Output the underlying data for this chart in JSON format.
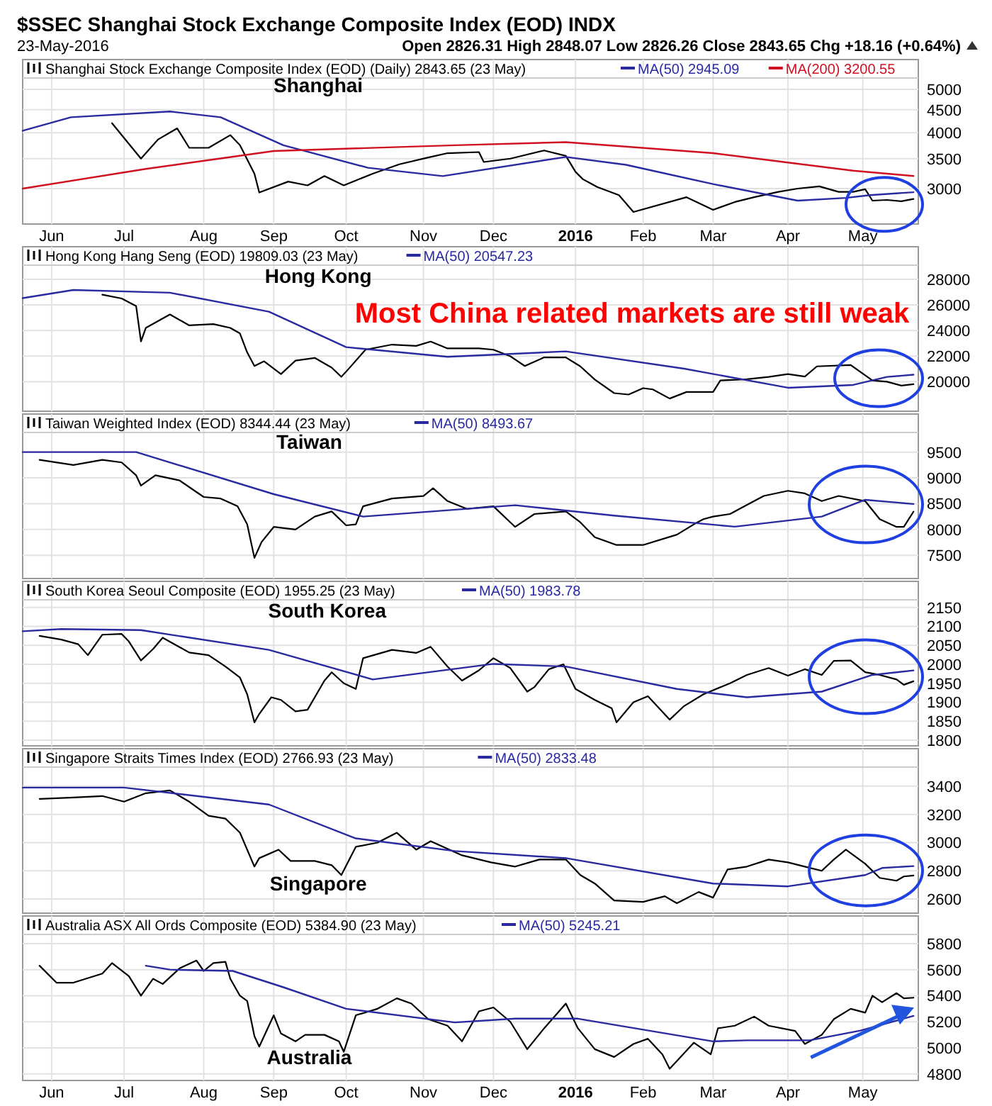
{
  "chart_data": [
    {
      "type": "line",
      "title": "$SSEC Shanghai Stock Exchange Composite Index (EOD) INDX",
      "subtitle": "23-May-2016",
      "annotations": [
        "Shanghai",
        "Open 2826.31 High 2848.07 Low 2826.26 Close 2843.65 Chg +18.16 (+0.64%)"
      ],
      "log": "y",
      "grid": true,
      "legend": "top left",
      "xlim": [
        "2015-05-20",
        "2016-05-25"
      ],
      "xticks": [
        {
          "value": "2015-06-01",
          "label": "Jun"
        },
        {
          "value": "2015-07-01",
          "label": "Jul"
        },
        {
          "value": "2015-08-03",
          "label": "Aug"
        },
        {
          "value": "2015-09-01",
          "label": "Sep"
        },
        {
          "value": "2015-10-01",
          "label": "Oct"
        },
        {
          "value": "2015-11-02",
          "label": "Nov"
        },
        {
          "value": "2015-12-01",
          "label": "Dec"
        },
        {
          "value": "2016-01-04",
          "label": "2016"
        },
        {
          "value": "2016-02-01",
          "label": "Feb"
        },
        {
          "value": "2016-03-01",
          "label": "Mar"
        },
        {
          "value": "2016-04-01",
          "label": "Apr"
        },
        {
          "value": "2016-05-02",
          "label": "May"
        }
      ],
      "ylim": [
        2500,
        5300
      ],
      "yticks": [
        3000,
        3500,
        4000,
        4500,
        5000
      ],
      "series": [
        {
          "name": "Shanghai Stock Exchange Composite Index (EOD) (Daily) 2843.65 (23 May)",
          "color": "#000000",
          "x": [
            "2015-06-26",
            "2015-07-08",
            "2015-07-15",
            "2015-07-23",
            "2015-07-28",
            "2015-08-05",
            "2015-08-14",
            "2015-08-18",
            "2015-08-24",
            "2015-08-26",
            "2015-09-07",
            "2015-09-15",
            "2015-09-22",
            "2015-09-30",
            "2015-10-12",
            "2015-10-23",
            "2015-11-04",
            "2015-11-12",
            "2015-11-25",
            "2015-11-27",
            "2015-12-08",
            "2015-12-22",
            "2015-12-31",
            "2016-01-04",
            "2016-01-07",
            "2016-01-13",
            "2016-01-22",
            "2016-01-28",
            "2016-02-19",
            "2016-03-01",
            "2016-03-10",
            "2016-03-18",
            "2016-03-28",
            "2016-04-05",
            "2016-04-14",
            "2016-04-22",
            "2016-04-28",
            "2016-05-03",
            "2016-05-06",
            "2016-05-12",
            "2016-05-18",
            "2016-05-23"
          ],
          "values": [
            4200,
            3500,
            3860,
            4090,
            3700,
            3700,
            3950,
            3750,
            3240,
            2940,
            3110,
            3050,
            3200,
            3050,
            3240,
            3400,
            3520,
            3600,
            3620,
            3440,
            3500,
            3650,
            3550,
            3270,
            3150,
            3025,
            2900,
            2660,
            2870,
            2690,
            2800,
            2870,
            2950,
            3000,
            3035,
            2950,
            2950,
            2990,
            2820,
            2830,
            2810,
            2843.65
          ]
        },
        {
          "name": "MA(50) 2945.09",
          "color": "#2a2aa0",
          "x": [
            "2015-05-20",
            "2015-06-09",
            "2015-07-20",
            "2015-08-10",
            "2015-09-05",
            "2015-10-10",
            "2015-11-10",
            "2015-12-31",
            "2016-01-25",
            "2016-03-01",
            "2016-04-05",
            "2016-04-25",
            "2016-05-05",
            "2016-05-23"
          ],
          "values": [
            4040,
            4330,
            4460,
            4330,
            3750,
            3340,
            3200,
            3530,
            3390,
            3070,
            2820,
            2860,
            2900,
            2945.09
          ]
        },
        {
          "name": "MA(200) 3200.55",
          "color": "#d01020",
          "x": [
            "2015-05-20",
            "2015-07-10",
            "2015-09-01",
            "2015-11-15",
            "2015-12-31",
            "2016-03-01",
            "2016-04-28",
            "2016-05-23"
          ],
          "values": [
            3000,
            3320,
            3640,
            3750,
            3810,
            3600,
            3290,
            3200.55
          ]
        }
      ]
    },
    {
      "type": "line",
      "annotations": [
        "Hong Kong",
        "Most China related markets are still weak"
      ],
      "grid": true,
      "legend": "top left",
      "tick_labels": "y",
      "xlim": [
        "2015-05-20",
        "2016-05-25"
      ],
      "xticks": [
        {
          "value": "2015-06-01",
          "label": null
        },
        {
          "value": "2015-07-01",
          "label": null
        },
        {
          "value": "2015-08-03",
          "label": null
        },
        {
          "value": "2015-09-01",
          "label": null
        },
        {
          "value": "2015-10-01",
          "label": null
        },
        {
          "value": "2015-11-02",
          "label": null
        },
        {
          "value": "2015-12-01",
          "label": null
        },
        {
          "value": "2016-01-04",
          "label": null
        },
        {
          "value": "2016-02-01",
          "label": null
        },
        {
          "value": "2016-03-01",
          "label": null
        },
        {
          "value": "2016-04-01",
          "label": null
        },
        {
          "value": "2016-05-02",
          "label": null
        }
      ],
      "ylim": [
        17700,
        29100
      ],
      "yticks": [
        20000,
        22000,
        24000,
        26000,
        28000
      ],
      "series": [
        {
          "name": "Hong Kong Hang Seng (EOD) 19809.03 (23 May)",
          "color": "#000000",
          "x": [
            "2015-06-22",
            "2015-06-30",
            "2015-07-06",
            "2015-07-08",
            "2015-07-10",
            "2015-07-20",
            "2015-07-28",
            "2015-08-07",
            "2015-08-14",
            "2015-08-18",
            "2015-08-21",
            "2015-08-24",
            "2015-08-28",
            "2015-09-04",
            "2015-09-10",
            "2015-09-18",
            "2015-09-25",
            "2015-09-29",
            "2015-10-02",
            "2015-10-09",
            "2015-10-20",
            "2015-10-30",
            "2015-11-05",
            "2015-11-12",
            "2015-11-25",
            "2015-12-01",
            "2015-12-08",
            "2015-12-14",
            "2015-12-22",
            "2015-12-31",
            "2016-01-06",
            "2016-01-12",
            "2016-01-20",
            "2016-01-26",
            "2016-02-01",
            "2016-02-05",
            "2016-02-12",
            "2016-02-19",
            "2016-03-01",
            "2016-03-04",
            "2016-03-15",
            "2016-03-24",
            "2016-04-01",
            "2016-04-08",
            "2016-04-13",
            "2016-04-27",
            "2016-05-03",
            "2016-05-06",
            "2016-05-12",
            "2016-05-18",
            "2016-05-23"
          ],
          "values": [
            26800,
            26500,
            25900,
            23150,
            24200,
            25250,
            24400,
            24500,
            24200,
            23770,
            22290,
            21230,
            21600,
            20600,
            21650,
            21860,
            21100,
            20380,
            21000,
            22500,
            22900,
            22800,
            23135,
            22600,
            22600,
            22500,
            21990,
            21230,
            21900,
            21900,
            21200,
            20170,
            19110,
            19000,
            19500,
            19400,
            18690,
            19200,
            19200,
            20100,
            20200,
            20380,
            20600,
            20400,
            21200,
            21300,
            20500,
            20100,
            20000,
            19700,
            19809.03
          ]
        },
        {
          "name": "MA(50) 20547.23",
          "color": "#2a2aa0",
          "x": [
            "2015-05-20",
            "2015-06-10",
            "2015-07-20",
            "2015-08-30",
            "2015-10-01",
            "2015-11-12",
            "2015-12-31",
            "2016-02-18",
            "2016-04-01",
            "2016-04-28",
            "2016-05-12",
            "2016-05-23"
          ],
          "values": [
            26525,
            27160,
            26950,
            25470,
            22700,
            21950,
            22370,
            21020,
            19530,
            19750,
            20380,
            20547.23
          ]
        }
      ]
    },
    {
      "type": "line",
      "annotations": [
        "Taiwan"
      ],
      "grid": true,
      "legend": "top left",
      "tick_labels": "y",
      "xlim": [
        "2015-05-20",
        "2016-05-25"
      ],
      "xticks": [
        {
          "value": "2015-06-01",
          "label": null
        },
        {
          "value": "2015-07-01",
          "label": null
        },
        {
          "value": "2015-08-03",
          "label": null
        },
        {
          "value": "2015-09-01",
          "label": null
        },
        {
          "value": "2015-10-01",
          "label": null
        },
        {
          "value": "2015-11-02",
          "label": null
        },
        {
          "value": "2015-12-01",
          "label": null
        },
        {
          "value": "2016-01-04",
          "label": null
        },
        {
          "value": "2016-02-01",
          "label": null
        },
        {
          "value": "2016-03-01",
          "label": null
        },
        {
          "value": "2016-04-01",
          "label": null
        },
        {
          "value": "2016-05-02",
          "label": null
        }
      ],
      "ylim": [
        7050,
        9880
      ],
      "yticks": [
        7500,
        8000,
        8500,
        9000,
        9500
      ],
      "series": [
        {
          "name": "Taiwan Weighted Index (EOD) 8344.44 (23 May)",
          "color": "#000000",
          "x": [
            "2015-05-27",
            "2015-06-10",
            "2015-06-22",
            "2015-06-30",
            "2015-07-06",
            "2015-07-08",
            "2015-07-14",
            "2015-07-24",
            "2015-08-03",
            "2015-08-10",
            "2015-08-17",
            "2015-08-21",
            "2015-08-24",
            "2015-08-27",
            "2015-09-01",
            "2015-09-10",
            "2015-09-18",
            "2015-09-25",
            "2015-10-01",
            "2015-10-05",
            "2015-10-08",
            "2015-10-20",
            "2015-11-02",
            "2015-11-06",
            "2015-11-12",
            "2015-11-20",
            "2015-12-01",
            "2015-12-10",
            "2015-12-18",
            "2015-12-31",
            "2016-01-06",
            "2016-01-12",
            "2016-01-21",
            "2016-02-01",
            "2016-02-15",
            "2016-02-22",
            "2016-02-26",
            "2016-03-01",
            "2016-03-08",
            "2016-03-14",
            "2016-03-22",
            "2016-04-01",
            "2016-04-08",
            "2016-04-15",
            "2016-04-22",
            "2016-05-03",
            "2016-05-09",
            "2016-05-16",
            "2016-05-19",
            "2016-05-23"
          ],
          "values": [
            9350,
            9250,
            9350,
            9300,
            9050,
            8850,
            9050,
            8950,
            8630,
            8600,
            8450,
            8100,
            7450,
            7760,
            8050,
            8000,
            8250,
            8350,
            8080,
            8100,
            8450,
            8600,
            8650,
            8800,
            8550,
            8400,
            8450,
            8050,
            8300,
            8350,
            8140,
            7850,
            7700,
            7700,
            7900,
            8100,
            8200,
            8250,
            8300,
            8450,
            8650,
            8750,
            8700,
            8550,
            8650,
            8550,
            8200,
            8050,
            8050,
            8344.44
          ]
        },
        {
          "name": "MA(50) 8493.67",
          "color": "#2a2aa0",
          "x": [
            "2015-05-20",
            "2015-07-06",
            "2015-09-01",
            "2015-10-08",
            "2015-12-10",
            "2016-01-20",
            "2016-03-10",
            "2016-04-15",
            "2016-05-03",
            "2016-05-23"
          ],
          "values": [
            9500,
            9500,
            8685,
            8250,
            8470,
            8270,
            8054,
            8250,
            8575,
            8493.67
          ]
        }
      ]
    },
    {
      "type": "line",
      "annotations": [
        "South Korea"
      ],
      "grid": true,
      "legend": "top left",
      "tick_labels": "y",
      "xlim": [
        "2015-05-20",
        "2016-05-25"
      ],
      "xticks": [
        {
          "value": "2015-06-01",
          "label": null
        },
        {
          "value": "2015-07-01",
          "label": null
        },
        {
          "value": "2015-08-03",
          "label": null
        },
        {
          "value": "2015-09-01",
          "label": null
        },
        {
          "value": "2015-10-01",
          "label": null
        },
        {
          "value": "2015-11-02",
          "label": null
        },
        {
          "value": "2015-12-01",
          "label": null
        },
        {
          "value": "2016-01-04",
          "label": null
        },
        {
          "value": "2016-02-01",
          "label": null
        },
        {
          "value": "2016-03-01",
          "label": null
        },
        {
          "value": "2016-04-01",
          "label": null
        },
        {
          "value": "2016-05-02",
          "label": null
        }
      ],
      "ylim": [
        1785,
        2170
      ],
      "yticks": [
        1800,
        1850,
        1900,
        1950,
        2000,
        2050,
        2100,
        2150
      ],
      "series": [
        {
          "name": "South Korea Seoul Composite (EOD) 1955.25 (23 May)",
          "color": "#000000",
          "x": [
            "2015-05-27",
            "2015-06-05",
            "2015-06-12",
            "2015-06-16",
            "2015-06-22",
            "2015-06-30",
            "2015-07-03",
            "2015-07-08",
            "2015-07-13",
            "2015-07-17",
            "2015-07-28",
            "2015-08-05",
            "2015-08-12",
            "2015-08-18",
            "2015-08-21",
            "2015-08-24",
            "2015-08-26",
            "2015-08-31",
            "2015-09-04",
            "2015-09-10",
            "2015-09-15",
            "2015-09-22",
            "2015-09-25",
            "2015-09-30",
            "2015-10-05",
            "2015-10-08",
            "2015-10-20",
            "2015-10-30",
            "2015-11-05",
            "2015-11-12",
            "2015-11-18",
            "2015-11-25",
            "2015-12-01",
            "2015-12-08",
            "2015-12-15",
            "2015-12-18",
            "2015-12-24",
            "2015-12-30",
            "2016-01-04",
            "2016-01-12",
            "2016-01-19",
            "2016-01-21",
            "2016-01-28",
            "2016-02-03",
            "2016-02-12",
            "2016-02-18",
            "2016-02-26",
            "2016-03-08",
            "2016-03-15",
            "2016-03-24",
            "2016-04-01",
            "2016-04-08",
            "2016-04-15",
            "2016-04-20",
            "2016-04-27",
            "2016-05-03",
            "2016-05-09",
            "2016-05-16",
            "2016-05-19",
            "2016-05-23"
          ],
          "values": [
            2075,
            2065,
            2053,
            2024,
            2078,
            2080,
            2060,
            2010,
            2040,
            2070,
            2031,
            2024,
            1994,
            1965,
            1921,
            1847,
            1869,
            1913,
            1906,
            1876,
            1880,
            1957,
            1979,
            1950,
            1935,
            2016,
            2038,
            2030,
            2046,
            1994,
            1957,
            1984,
            2016,
            1990,
            1928,
            1940,
            1987,
            2000,
            1935,
            1906,
            1884,
            1847,
            1900,
            1916,
            1854,
            1890,
            1921,
            1950,
            1972,
            1990,
            1970,
            1987,
            1972,
            2009,
            2010,
            1979,
            1972,
            1960,
            1946,
            1955.25
          ]
        },
        {
          "name": "MA(50) 1983.78",
          "color": "#2a2aa0",
          "x": [
            "2015-05-20",
            "2015-06-05",
            "2015-07-08",
            "2015-08-30",
            "2015-10-12",
            "2015-12-01",
            "2015-12-31",
            "2016-02-15",
            "2016-03-15",
            "2016-04-15",
            "2016-05-06",
            "2016-05-23"
          ],
          "values": [
            2087,
            2093,
            2090,
            2038,
            1960,
            2001,
            1994,
            1935,
            1913,
            1928,
            1972,
            1983.78
          ]
        }
      ]
    },
    {
      "type": "line",
      "annotations": [
        "Singapore"
      ],
      "grid": true,
      "legend": "top left",
      "tick_labels": "y",
      "xlim": [
        "2015-05-20",
        "2016-05-25"
      ],
      "xticks": [
        {
          "value": "2015-06-01",
          "label": null
        },
        {
          "value": "2015-07-01",
          "label": null
        },
        {
          "value": "2015-08-03",
          "label": null
        },
        {
          "value": "2015-09-01",
          "label": null
        },
        {
          "value": "2015-10-01",
          "label": null
        },
        {
          "value": "2015-11-02",
          "label": null
        },
        {
          "value": "2015-12-01",
          "label": null
        },
        {
          "value": "2016-01-04",
          "label": null
        },
        {
          "value": "2016-02-01",
          "label": null
        },
        {
          "value": "2016-03-01",
          "label": null
        },
        {
          "value": "2016-04-01",
          "label": null
        },
        {
          "value": "2016-05-02",
          "label": null
        }
      ],
      "ylim": [
        2500,
        3535
      ],
      "yticks": [
        2600,
        2800,
        3000,
        3200,
        3400
      ],
      "series": [
        {
          "name": "Singapore Straits Times Index (EOD) 2766.93 (23 May)",
          "color": "#000000",
          "x": [
            "2015-05-27",
            "2015-06-10",
            "2015-06-22",
            "2015-07-01",
            "2015-07-10",
            "2015-07-20",
            "2015-07-28",
            "2015-08-05",
            "2015-08-12",
            "2015-08-18",
            "2015-08-24",
            "2015-08-26",
            "2015-09-03",
            "2015-09-08",
            "2015-09-18",
            "2015-09-25",
            "2015-09-29",
            "2015-10-05",
            "2015-10-14",
            "2015-10-22",
            "2015-10-30",
            "2015-11-05",
            "2015-11-18",
            "2015-11-30",
            "2015-12-10",
            "2015-12-20",
            "2015-12-31",
            "2016-01-06",
            "2016-01-12",
            "2016-01-20",
            "2016-02-01",
            "2016-02-10",
            "2016-02-15",
            "2016-02-24",
            "2016-03-01",
            "2016-03-07",
            "2016-03-15",
            "2016-03-24",
            "2016-04-01",
            "2016-04-08",
            "2016-04-15",
            "2016-04-20",
            "2016-04-25",
            "2016-05-03",
            "2016-05-09",
            "2016-05-16",
            "2016-05-19",
            "2016-05-23"
          ],
          "values": [
            3310,
            3320,
            3330,
            3290,
            3350,
            3370,
            3290,
            3190,
            3170,
            3070,
            2830,
            2890,
            2950,
            2870,
            2870,
            2840,
            2770,
            2970,
            3000,
            3070,
            2950,
            3010,
            2910,
            2860,
            2830,
            2880,
            2880,
            2770,
            2710,
            2590,
            2580,
            2620,
            2570,
            2650,
            2610,
            2810,
            2830,
            2880,
            2860,
            2830,
            2800,
            2880,
            2950,
            2850,
            2750,
            2730,
            2760,
            2766.93
          ]
        },
        {
          "name": "MA(50) 2833.48",
          "color": "#2a2aa0",
          "x": [
            "2015-05-20",
            "2015-07-01",
            "2015-08-30",
            "2015-10-05",
            "2015-11-15",
            "2015-12-31",
            "2016-03-01",
            "2016-04-01",
            "2016-05-03",
            "2016-05-10",
            "2016-05-23"
          ],
          "values": [
            3390,
            3390,
            3270,
            3030,
            2940,
            2890,
            2710,
            2690,
            2770,
            2820,
            2833.48
          ]
        }
      ]
    },
    {
      "type": "line",
      "annotations": [
        "Australia"
      ],
      "grid": true,
      "legend": "top left",
      "xlim": [
        "2015-05-20",
        "2016-05-25"
      ],
      "xticks": [
        {
          "value": "2015-06-01",
          "label": "Jun"
        },
        {
          "value": "2015-07-01",
          "label": "Jul"
        },
        {
          "value": "2015-08-03",
          "label": "Aug"
        },
        {
          "value": "2015-09-01",
          "label": "Sep"
        },
        {
          "value": "2015-10-01",
          "label": "Oct"
        },
        {
          "value": "2015-11-02",
          "label": "Nov"
        },
        {
          "value": "2015-12-01",
          "label": "Dec"
        },
        {
          "value": "2016-01-04",
          "label": "2016"
        },
        {
          "value": "2016-02-01",
          "label": "Feb"
        },
        {
          "value": "2016-03-01",
          "label": "Mar"
        },
        {
          "value": "2016-04-01",
          "label": "Apr"
        },
        {
          "value": "2016-05-02",
          "label": "May"
        }
      ],
      "ylim": [
        4750,
        5870
      ],
      "yticks": [
        4800,
        5000,
        5200,
        5400,
        5600,
        5800
      ],
      "series": [
        {
          "name": "Australia ASX All Ords Composite (EOD) 5384.90 (23 May)",
          "color": "#000000",
          "x": [
            "2015-05-27",
            "2015-06-03",
            "2015-06-10",
            "2015-06-22",
            "2015-06-26",
            "2015-07-03",
            "2015-07-08",
            "2015-07-13",
            "2015-07-17",
            "2015-07-24",
            "2015-07-31",
            "2015-08-03",
            "2015-08-07",
            "2015-08-12",
            "2015-08-14",
            "2015-08-18",
            "2015-08-21",
            "2015-08-24",
            "2015-08-26",
            "2015-09-01",
            "2015-09-04",
            "2015-09-10",
            "2015-09-14",
            "2015-09-22",
            "2015-09-28",
            "2015-09-30",
            "2015-10-05",
            "2015-10-14",
            "2015-10-22",
            "2015-10-28",
            "2015-11-04",
            "2015-11-12",
            "2015-11-18",
            "2015-11-25",
            "2015-12-01",
            "2015-12-08",
            "2015-12-15",
            "2015-12-22",
            "2015-12-31",
            "2016-01-05",
            "2016-01-12",
            "2016-01-20",
            "2016-01-28",
            "2016-02-03",
            "2016-02-09",
            "2016-02-12",
            "2016-02-22",
            "2016-02-29",
            "2016-03-03",
            "2016-03-10",
            "2016-03-18",
            "2016-03-24",
            "2016-04-04",
            "2016-04-08",
            "2016-04-15",
            "2016-04-20",
            "2016-04-27",
            "2016-05-03",
            "2016-05-06",
            "2016-05-10",
            "2016-05-16",
            "2016-05-19",
            "2016-05-23"
          ],
          "values": [
            5630,
            5500,
            5500,
            5570,
            5650,
            5550,
            5400,
            5530,
            5490,
            5610,
            5670,
            5590,
            5650,
            5660,
            5530,
            5400,
            5360,
            5090,
            5010,
            5250,
            5110,
            5050,
            5100,
            5100,
            5050,
            4970,
            5250,
            5300,
            5380,
            5340,
            5220,
            5170,
            5050,
            5280,
            5310,
            5200,
            4990,
            5150,
            5340,
            5150,
            4990,
            4930,
            5030,
            5070,
            4950,
            4840,
            5040,
            4950,
            5150,
            5170,
            5240,
            5170,
            5130,
            5030,
            5100,
            5220,
            5300,
            5270,
            5400,
            5350,
            5420,
            5380,
            5384.9
          ]
        },
        {
          "name": "MA(50) 5245.21",
          "color": "#2a2aa0",
          "x": [
            "2015-07-10",
            "2015-07-20",
            "2015-08-15",
            "2015-09-05",
            "2015-10-01",
            "2015-11-15",
            "2015-12-10",
            "2016-01-05",
            "2016-03-01",
            "2016-03-15",
            "2016-04-10",
            "2016-05-01",
            "2016-05-23"
          ],
          "values": [
            5630,
            5600,
            5590,
            5465,
            5300,
            5195,
            5224,
            5224,
            5050,
            5058,
            5058,
            5133,
            5245.21
          ]
        }
      ]
    }
  ]
}
